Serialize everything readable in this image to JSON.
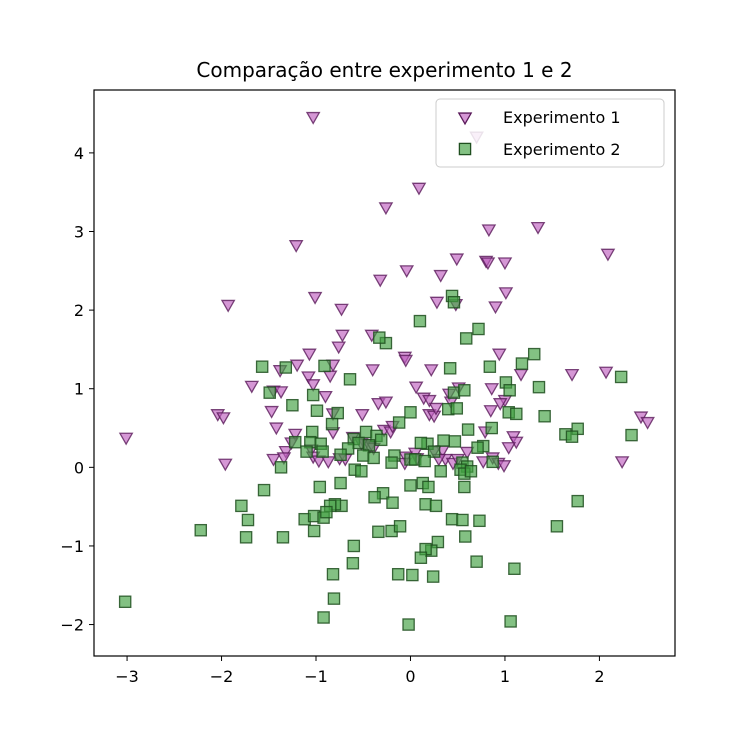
{
  "chart_data": {
    "type": "scatter",
    "title": "Comparação entre experimento 1 e 2",
    "xlabel": "",
    "ylabel": "",
    "xlim": [
      -3.35,
      2.8
    ],
    "ylim": [
      -2.4,
      4.8
    ],
    "xticks": [
      -3,
      -2,
      -1,
      0,
      1,
      2
    ],
    "yticks": [
      -2,
      -1,
      0,
      1,
      2,
      3,
      4
    ],
    "grid": false,
    "legend": "top-right",
    "series": [
      {
        "name": "Experimento 1",
        "marker": "triangle-down",
        "color": "#bf5fbf",
        "edge": "#5a1a5a",
        "points": [
          [
            -1.03,
            4.45
          ],
          [
            0.09,
            3.55
          ],
          [
            -0.26,
            3.3
          ],
          [
            1.35,
            3.05
          ],
          [
            0.83,
            3.02
          ],
          [
            -1.21,
            2.82
          ],
          [
            2.09,
            2.71
          ],
          [
            0.49,
            2.65
          ],
          [
            0.8,
            2.62
          ],
          [
            0.82,
            2.6
          ],
          [
            1.0,
            2.6
          ],
          [
            -0.04,
            2.5
          ],
          [
            0.32,
            2.44
          ],
          [
            -0.32,
            2.38
          ],
          [
            1.01,
            2.22
          ],
          [
            -1.01,
            2.16
          ],
          [
            0.28,
            2.1
          ],
          [
            0.48,
            2.07
          ],
          [
            0.9,
            2.04
          ],
          [
            -1.93,
            2.06
          ],
          [
            -0.73,
            2.01
          ],
          [
            -0.41,
            1.68
          ],
          [
            -0.72,
            1.68
          ],
          [
            -0.76,
            1.53
          ],
          [
            0.94,
            1.44
          ],
          [
            -0.06,
            1.4
          ],
          [
            -1.07,
            1.44
          ],
          [
            -0.82,
            1.3
          ],
          [
            -1.2,
            1.3
          ],
          [
            -1.38,
            1.23
          ],
          [
            0.22,
            1.24
          ],
          [
            -0.4,
            1.24
          ],
          [
            -0.05,
            1.36
          ],
          [
            -0.85,
            1.16
          ],
          [
            -1.08,
            1.15
          ],
          [
            1.71,
            1.18
          ],
          [
            2.07,
            1.21
          ],
          [
            1.17,
            1.18
          ],
          [
            -1.03,
            1.05
          ],
          [
            -1.68,
            1.03
          ],
          [
            0.06,
            1.02
          ],
          [
            0.51,
            1.01
          ],
          [
            0.86,
            1.0
          ],
          [
            -1.45,
            0.97
          ],
          [
            -1.37,
            0.96
          ],
          [
            0.41,
            0.93
          ],
          [
            -0.9,
            0.9
          ],
          [
            -0.34,
            0.81
          ],
          [
            -0.26,
            0.83
          ],
          [
            0.43,
            0.83
          ],
          [
            0.14,
            0.88
          ],
          [
            0.2,
            0.85
          ],
          [
            1.0,
            0.85
          ],
          [
            0.95,
            0.81
          ],
          [
            0.85,
            0.72
          ],
          [
            -1.47,
            0.71
          ],
          [
            -0.82,
            0.68
          ],
          [
            -0.51,
            0.67
          ],
          [
            0.2,
            0.67
          ],
          [
            0.25,
            0.65
          ],
          [
            0.27,
            0.75
          ],
          [
            -2.04,
            0.67
          ],
          [
            -1.98,
            0.63
          ],
          [
            2.44,
            0.64
          ],
          [
            2.51,
            0.57
          ],
          [
            -1.42,
            0.5
          ],
          [
            -1.22,
            0.42
          ],
          [
            -0.82,
            0.44
          ],
          [
            -0.61,
            0.38
          ],
          [
            -0.28,
            0.47
          ],
          [
            -0.21,
            0.45
          ],
          [
            -0.19,
            0.52
          ],
          [
            0.79,
            0.45
          ],
          [
            1.09,
            0.39
          ],
          [
            1.12,
            0.32
          ],
          [
            -3.01,
            0.37
          ],
          [
            -1.26,
            0.31
          ],
          [
            -1.32,
            0.2
          ],
          [
            -1.05,
            0.22
          ],
          [
            -1.03,
            0.13
          ],
          [
            -0.48,
            0.29
          ],
          [
            -0.43,
            0.26
          ],
          [
            -0.39,
            0.24
          ],
          [
            -0.52,
            0.3
          ],
          [
            0.34,
            0.21
          ],
          [
            0.05,
            0.18
          ],
          [
            -0.05,
            0.13
          ],
          [
            0.07,
            0.11
          ],
          [
            0.37,
            0.1
          ],
          [
            0.87,
            0.12
          ],
          [
            0.93,
            0.05
          ],
          [
            1.04,
            0.25
          ],
          [
            -1.96,
            0.04
          ],
          [
            -1.45,
            0.1
          ],
          [
            -1.34,
            0.12
          ],
          [
            -0.97,
            0.08
          ],
          [
            -0.87,
            0.07
          ],
          [
            -0.75,
            0.11
          ],
          [
            0.99,
            0.02
          ],
          [
            2.24,
            0.07
          ],
          [
            0.25,
            0.2
          ],
          [
            0.6,
            0.19
          ],
          [
            0.45,
            0.05
          ],
          [
            -0.69,
            0.1
          ],
          [
            -0.06,
            0.05
          ],
          [
            0.5,
            0.1
          ],
          [
            0.3,
            0.1
          ],
          [
            0.77,
            0.07
          ],
          [
            0.7,
            4.2
          ]
        ]
      },
      {
        "name": "Experimento 2",
        "marker": "square",
        "color": "#40a040",
        "edge": "#1f4f1f",
        "points": [
          [
            0.44,
            2.18
          ],
          [
            0.46,
            2.1
          ],
          [
            0.1,
            1.86
          ],
          [
            0.72,
            1.76
          ],
          [
            -0.26,
            1.58
          ],
          [
            0.59,
            1.64
          ],
          [
            -0.33,
            1.65
          ],
          [
            1.31,
            1.44
          ],
          [
            1.18,
            1.32
          ],
          [
            -1.32,
            1.27
          ],
          [
            -1.57,
            1.28
          ],
          [
            -0.91,
            1.29
          ],
          [
            0.42,
            1.26
          ],
          [
            0.84,
            1.28
          ],
          [
            1.01,
            1.08
          ],
          [
            2.23,
            1.15
          ],
          [
            -0.64,
            1.12
          ],
          [
            1.36,
            1.02
          ],
          [
            -1.49,
            0.95
          ],
          [
            0.46,
            0.95
          ],
          [
            0.57,
            0.98
          ],
          [
            -1.03,
            0.92
          ],
          [
            1.05,
            0.98
          ],
          [
            -1.25,
            0.79
          ],
          [
            0.4,
            0.74
          ],
          [
            -0.99,
            0.72
          ],
          [
            -0.77,
            0.69
          ],
          [
            1.04,
            0.7
          ],
          [
            1.12,
            0.68
          ],
          [
            1.42,
            0.65
          ],
          [
            0.49,
            0.75
          ],
          [
            0.0,
            0.7
          ],
          [
            -0.12,
            0.57
          ],
          [
            -0.83,
            0.55
          ],
          [
            0.61,
            0.48
          ],
          [
            0.86,
            0.5
          ],
          [
            1.77,
            0.49
          ],
          [
            1.64,
            0.42
          ],
          [
            1.71,
            0.39
          ],
          [
            2.34,
            0.41
          ],
          [
            -1.04,
            0.45
          ],
          [
            -0.47,
            0.45
          ],
          [
            -0.36,
            0.4
          ],
          [
            -0.6,
            0.36
          ],
          [
            -0.55,
            0.31
          ],
          [
            -0.31,
            0.35
          ],
          [
            0.35,
            0.34
          ],
          [
            0.47,
            0.33
          ],
          [
            -1.22,
            0.32
          ],
          [
            -1.06,
            0.32
          ],
          [
            -0.95,
            0.3
          ],
          [
            0.18,
            0.3
          ],
          [
            0.11,
            0.31
          ],
          [
            -0.44,
            0.28
          ],
          [
            0.77,
            0.27
          ],
          [
            0.71,
            0.25
          ],
          [
            -0.66,
            0.24
          ],
          [
            -0.93,
            0.2
          ],
          [
            -1.1,
            0.2
          ],
          [
            0.25,
            0.2
          ],
          [
            -0.74,
            0.16
          ],
          [
            -0.5,
            0.15
          ],
          [
            -0.39,
            0.12
          ],
          [
            -0.17,
            0.15
          ],
          [
            0.0,
            0.1
          ],
          [
            0.05,
            0.1
          ],
          [
            0.15,
            0.08
          ],
          [
            0.55,
            0.06
          ],
          [
            0.6,
            0.01
          ],
          [
            0.87,
            0.07
          ],
          [
            -1.37,
            0.0
          ],
          [
            -0.59,
            -0.03
          ],
          [
            -0.52,
            -0.05
          ],
          [
            -0.2,
            0.06
          ],
          [
            0.32,
            -0.05
          ],
          [
            0.53,
            -0.03
          ],
          [
            0.57,
            -0.08
          ],
          [
            0.64,
            -0.05
          ],
          [
            -0.74,
            -0.2
          ],
          [
            -0.29,
            -0.33
          ],
          [
            -0.38,
            -0.38
          ],
          [
            0.13,
            -0.2
          ],
          [
            0.19,
            -0.25
          ],
          [
            0.0,
            -0.23
          ],
          [
            0.57,
            -0.25
          ],
          [
            -1.55,
            -0.29
          ],
          [
            -0.96,
            -0.25
          ],
          [
            -0.19,
            -0.45
          ],
          [
            0.16,
            -0.47
          ],
          [
            0.27,
            -0.49
          ],
          [
            -0.73,
            -0.49
          ],
          [
            -0.8,
            -0.47
          ],
          [
            -0.85,
            -0.49
          ],
          [
            -1.12,
            -0.66
          ],
          [
            -1.02,
            -0.62
          ],
          [
            -0.92,
            -0.64
          ],
          [
            -0.89,
            -0.57
          ],
          [
            -1.79,
            -0.49
          ],
          [
            -1.72,
            -0.67
          ],
          [
            -2.22,
            -0.8
          ],
          [
            -1.74,
            -0.89
          ],
          [
            -1.35,
            -0.89
          ],
          [
            -1.02,
            -0.81
          ],
          [
            -0.34,
            -0.82
          ],
          [
            -0.2,
            -0.81
          ],
          [
            -0.11,
            -0.75
          ],
          [
            0.44,
            -0.66
          ],
          [
            0.55,
            -0.67
          ],
          [
            0.73,
            -0.68
          ],
          [
            1.55,
            -0.75
          ],
          [
            1.77,
            -0.43
          ],
          [
            0.58,
            -0.88
          ],
          [
            0.29,
            -0.95
          ],
          [
            0.22,
            -1.06
          ],
          [
            0.16,
            -1.04
          ],
          [
            0.11,
            -1.15
          ],
          [
            0.02,
            -1.37
          ],
          [
            -0.13,
            -1.36
          ],
          [
            0.24,
            -1.39
          ],
          [
            0.7,
            -1.2
          ],
          [
            1.1,
            -1.29
          ],
          [
            -0.6,
            -1.0
          ],
          [
            -0.61,
            -1.22
          ],
          [
            -0.82,
            -1.36
          ],
          [
            -0.81,
            -1.67
          ],
          [
            -0.92,
            -1.91
          ],
          [
            -0.02,
            -2.0
          ],
          [
            1.06,
            -1.96
          ],
          [
            -3.02,
            -1.71
          ]
        ]
      }
    ]
  }
}
